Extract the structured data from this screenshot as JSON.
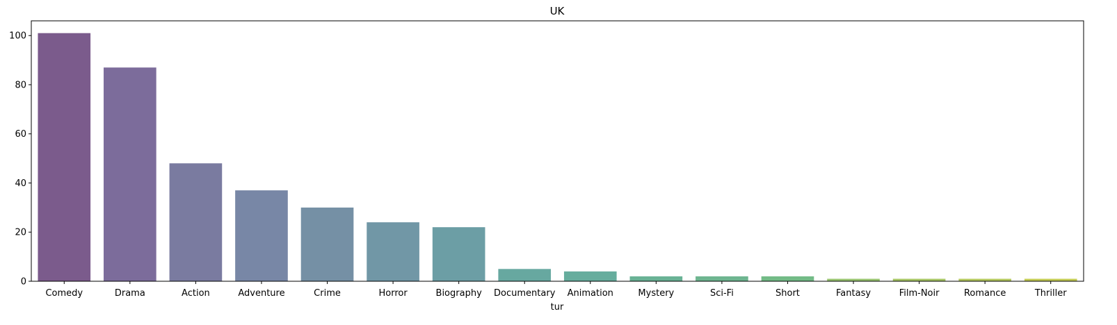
{
  "chart_data": {
    "type": "bar",
    "title": "UK",
    "xlabel": "tur",
    "ylabel": "",
    "ylim": [
      0,
      106
    ],
    "yticks": [
      0,
      20,
      40,
      60,
      80,
      100
    ],
    "grid": false,
    "categories": [
      "Comedy",
      "Drama",
      "Action",
      "Adventure",
      "Crime",
      "Horror",
      "Biography",
      "Documentary",
      "Animation",
      "Mystery",
      "Sci-Fi",
      "Short",
      "Fantasy",
      "Film-Noir",
      "Romance",
      "Thriller"
    ],
    "values": [
      101,
      87,
      48,
      37,
      30,
      24,
      22,
      5,
      4,
      2,
      2,
      2,
      1,
      1,
      1,
      1
    ],
    "colors": [
      "#7b5b8c",
      "#7c6c9b",
      "#7a7ba0",
      "#7887a6",
      "#7590a5",
      "#7197a6",
      "#6c9ea5",
      "#67a8a0",
      "#66ad9d",
      "#69b295",
      "#6eb590",
      "#73bb87",
      "#98c36f",
      "#a6c564",
      "#b4c85d",
      "#c3cb52"
    ]
  }
}
